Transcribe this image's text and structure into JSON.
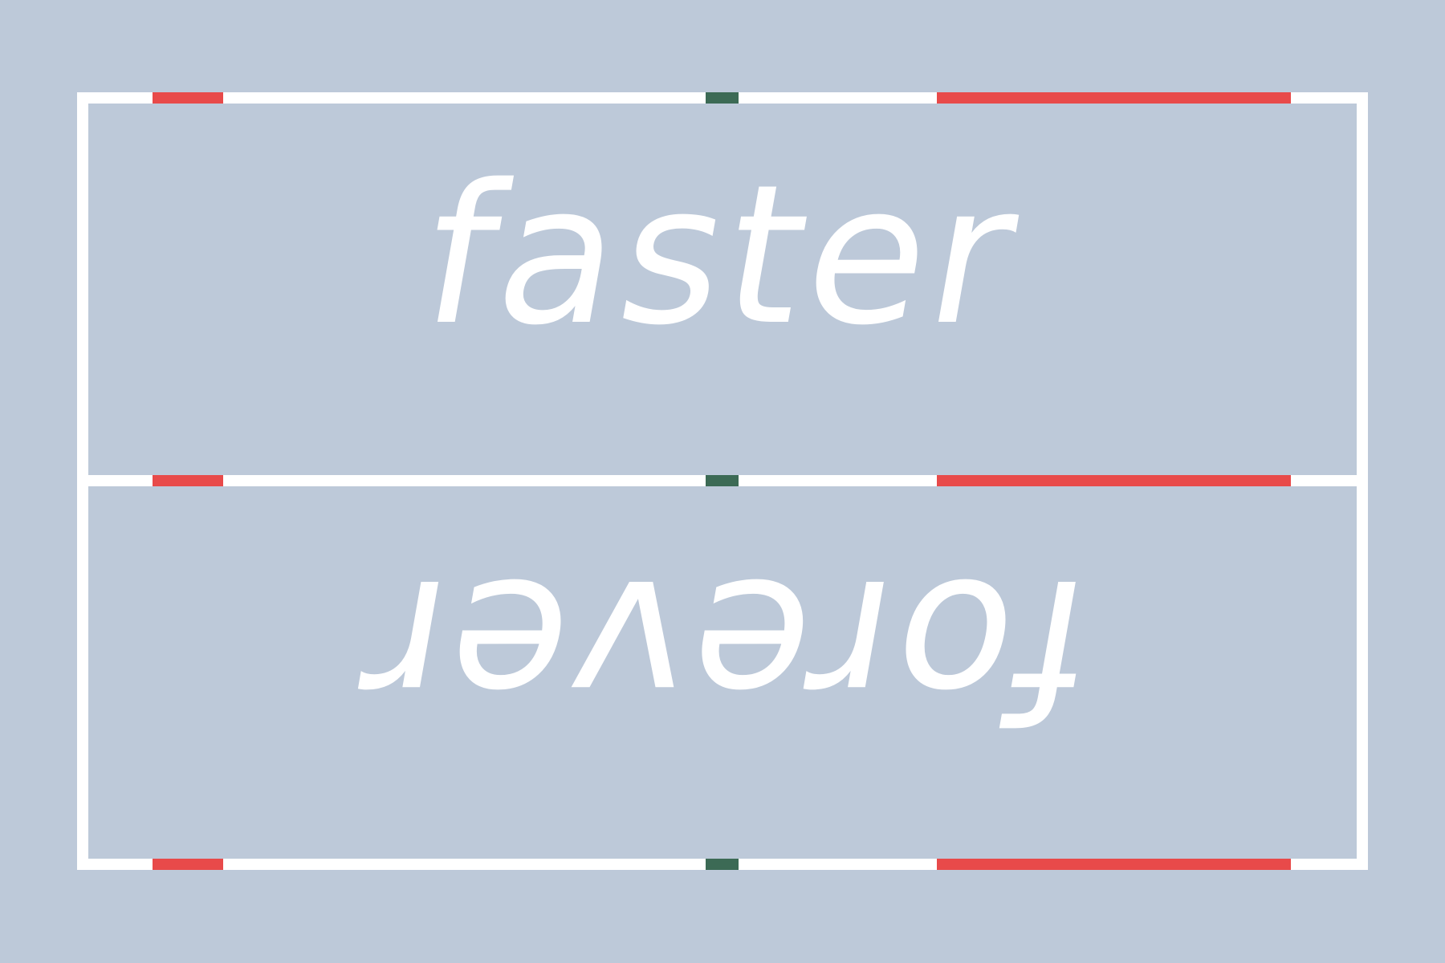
{
  "top_word": "faster",
  "bottom_word": "forever",
  "colors": {
    "background": "#bdc9d9",
    "frame": "#ffffff",
    "accent_red": "#e84a4a",
    "accent_green": "#3c6a55"
  }
}
